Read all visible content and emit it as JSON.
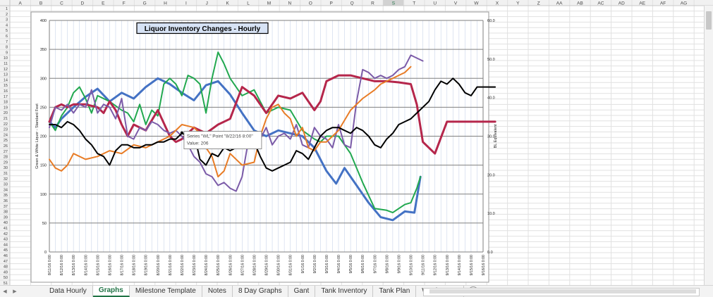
{
  "columns": [
    "A",
    "B",
    "C",
    "D",
    "E",
    "F",
    "G",
    "H",
    "I",
    "J",
    "K",
    "L",
    "M",
    "N",
    "O",
    "P",
    "Q",
    "R",
    "S",
    "T",
    "U",
    "V",
    "W",
    "X",
    "Y",
    "Z",
    "AA",
    "AB",
    "AC",
    "AD",
    "AE",
    "AF",
    "AG"
  ],
  "selected_column": "S",
  "rows": [
    "1",
    "2",
    "3",
    "4",
    "5",
    "6",
    "7",
    "8",
    "9",
    "10",
    "11",
    "12",
    "13",
    "14",
    "15",
    "16",
    "17",
    "18",
    "19",
    "20",
    "21",
    "22",
    "23",
    "24",
    "25",
    "26",
    "27",
    "28",
    "29",
    "30",
    "31",
    "32",
    "33",
    "34",
    "35",
    "36",
    "37",
    "38",
    "39",
    "40",
    "41",
    "42",
    "43",
    "44",
    "45",
    "46",
    "47",
    "48",
    "49",
    "50",
    "51"
  ],
  "sheet_tabs": [
    "Data Hourly",
    "Graphs",
    "Milestone Template",
    "Notes",
    "8 Day Graphs",
    "Gant",
    "Tank Inventory",
    "Tank Plan",
    "Washer F..."
  ],
  "active_tab": "Graphs",
  "add_sheet_label": "+",
  "tooltip": {
    "line1": "Series \"WL\" Point \"8/22/16 8:00\"",
    "line2": "Value: 206"
  },
  "chart_data": {
    "type": "line",
    "title": "Liquor Inventory Changes - Hourly",
    "ylabel": "Green & White Liquor - Standard Feet",
    "y2label": "BL Equivalent",
    "ylim": [
      0,
      400
    ],
    "y2lim": [
      0,
      60
    ],
    "yticks": [
      "0",
      "50",
      "100",
      "150",
      "200",
      "250",
      "300",
      "350",
      "400"
    ],
    "y2ticks": [
      "0.0",
      "10.0",
      "20.0",
      "30.0",
      "40.0",
      "50.0",
      "60.0"
    ],
    "grid": true,
    "legend": "none",
    "categories": [
      "8/11/16 0:00",
      "8/12/16 0:00",
      "8/13/16 0:00",
      "8/14/16 0:00",
      "8/15/16 0:00",
      "8/16/16 0:00",
      "8/17/16 0:00",
      "8/18/16 0:00",
      "8/19/16 0:00",
      "8/20/16 0:00",
      "8/21/16 0:00",
      "8/22/16 0:00",
      "8/23/16 0:00",
      "8/24/16 0:00",
      "8/25/16 0:00",
      "8/26/16 0:00",
      "8/27/16 0:00",
      "8/28/16 0:00",
      "8/29/16 0:00",
      "8/30/16 0:00",
      "8/31/16 0:00",
      "9/1/16 0:00",
      "9/2/16 0:00",
      "9/3/16 0:00",
      "9/4/16 0:00",
      "9/5/16 0:00",
      "9/6/16 0:00",
      "9/7/16 0:00",
      "9/8/16 0:00",
      "9/9/16 0:00",
      "9/10/16 0:00",
      "9/11/16 0:00",
      "9/12/16 0:00",
      "9/13/16 0:00",
      "9/14/16 0:00",
      "9/15/16 0:00",
      "9/16/16 0:00"
    ],
    "series": [
      {
        "color": "#4472c4",
        "width": 3,
        "x": [
          0,
          0.5,
          1,
          2,
          3,
          4,
          5,
          6,
          7,
          8,
          9,
          10,
          11,
          12,
          13,
          14,
          15,
          16,
          17,
          18,
          19,
          20,
          21,
          22,
          23,
          23.8,
          24.5,
          25.5,
          26.5,
          27.5,
          28.5,
          29.5,
          30.3,
          30.8
        ],
        "y": [
          225,
          215,
          230,
          250,
          268,
          282,
          260,
          275,
          265,
          285,
          300,
          290,
          275,
          262,
          288,
          295,
          272,
          240,
          210,
          200,
          210,
          205,
          200,
          180,
          140,
          118,
          145,
          115,
          85,
          60,
          55,
          70,
          68,
          130
        ]
      },
      {
        "color": "#21a84f",
        "width": 2,
        "x": [
          0,
          0.5,
          1,
          1.5,
          2,
          2.5,
          3,
          3.5,
          4,
          5,
          6,
          6.5,
          7,
          7.5,
          8,
          8.5,
          9,
          9.5,
          10,
          10.5,
          11,
          11.5,
          12,
          12.5,
          13,
          13.5,
          14,
          14.5,
          15,
          16,
          17,
          18,
          19,
          20,
          21,
          22,
          22.5,
          23,
          24,
          25,
          26,
          27,
          28,
          28.5,
          29,
          29.5,
          30,
          30.5,
          30.8
        ],
        "y": [
          225,
          210,
          235,
          250,
          275,
          285,
          265,
          240,
          270,
          260,
          245,
          240,
          225,
          255,
          220,
          245,
          235,
          290,
          300,
          290,
          270,
          305,
          300,
          290,
          240,
          300,
          345,
          325,
          300,
          270,
          280,
          240,
          250,
          245,
          210,
          195,
          190,
          200,
          200,
          170,
          120,
          75,
          72,
          68,
          75,
          82,
          85,
          110,
          130
        ]
      },
      {
        "color": "#b5264b",
        "width": 3,
        "x": [
          0,
          0.5,
          1,
          1.5,
          2,
          3,
          4,
          4.5,
          5,
          5.5,
          6,
          6.5,
          7,
          8,
          9,
          10,
          10.5,
          11,
          12,
          13,
          14,
          15,
          16,
          17,
          18,
          19,
          20,
          21,
          22,
          22.5,
          23,
          24,
          25,
          26,
          27,
          28,
          29,
          30,
          30.5,
          31,
          32,
          33,
          34,
          35,
          36,
          37
        ],
        "y": [
          225,
          250,
          255,
          250,
          255,
          255,
          250,
          240,
          260,
          245,
          220,
          200,
          220,
          210,
          245,
          200,
          190,
          195,
          215,
          205,
          220,
          230,
          285,
          270,
          240,
          270,
          265,
          275,
          245,
          260,
          295,
          305,
          305,
          300,
          295,
          295,
          293,
          290,
          255,
          190,
          170,
          225,
          225,
          225,
          225,
          225
        ]
      },
      {
        "color": "#7b5ba8",
        "width": 2,
        "x": [
          0,
          0.5,
          1,
          1.5,
          2,
          2.5,
          3,
          3.5,
          4,
          4.5,
          5,
          5.5,
          6,
          6.5,
          7,
          7.5,
          8,
          8.5,
          9,
          9.5,
          10,
          10.5,
          11,
          11.5,
          12,
          12.5,
          13,
          13.5,
          14,
          14.5,
          15,
          15.5,
          16,
          16.5,
          17,
          17.5,
          18,
          18.5,
          19,
          19.5,
          20,
          20.5,
          21,
          21.5,
          22,
          22.5,
          23,
          23.5,
          24,
          24.5,
          25,
          25.5,
          26,
          26.5,
          27,
          27.5,
          28,
          28.5,
          29,
          29.5,
          30,
          30.5,
          31
        ],
        "y": [
          215,
          250,
          245,
          255,
          240,
          255,
          250,
          280,
          240,
          255,
          250,
          230,
          265,
          200,
          195,
          215,
          210,
          225,
          220,
          210,
          205,
          210,
          200,
          185,
          165,
          155,
          135,
          130,
          115,
          120,
          110,
          105,
          130,
          190,
          200,
          195,
          215,
          185,
          200,
          205,
          195,
          220,
          185,
          180,
          215,
          200,
          195,
          180,
          220,
          185,
          180,
          260,
          315,
          310,
          300,
          305,
          300,
          305,
          315,
          320,
          340,
          335,
          330
        ]
      },
      {
        "color": "#e87c26",
        "width": 2,
        "x": [
          0,
          0.5,
          1,
          1.5,
          2,
          3,
          4,
          5,
          6,
          7,
          8,
          9,
          10,
          11,
          12,
          12.5,
          13,
          13.5,
          14,
          14.5,
          15,
          16,
          17,
          17.5,
          18,
          18.5,
          19,
          19.5,
          20,
          20.5,
          21,
          21.5,
          22,
          22.5,
          23,
          23.5,
          24,
          25,
          26,
          27,
          27.5,
          28,
          28.5,
          29,
          29.5,
          30
        ],
        "y": [
          160,
          145,
          140,
          150,
          170,
          160,
          165,
          175,
          170,
          185,
          180,
          190,
          200,
          220,
          215,
          205,
          180,
          165,
          130,
          140,
          170,
          150,
          155,
          200,
          230,
          250,
          255,
          240,
          230,
          200,
          215,
          180,
          175,
          190,
          190,
          200,
          210,
          245,
          265,
          280,
          290,
          295,
          300,
          305,
          310,
          320
        ]
      },
      {
        "color": "#000000",
        "width": 2,
        "x": [
          0,
          0.5,
          1,
          1.5,
          2,
          2.5,
          3,
          3.5,
          4,
          4.5,
          5,
          5.5,
          6,
          6.5,
          7,
          7.5,
          8,
          8.5,
          9,
          9.5,
          10,
          10.5,
          11,
          11.5,
          12,
          12.5,
          13,
          13.5,
          14,
          14.5,
          15,
          15.5,
          16,
          16.5,
          17,
          17.5,
          18,
          18.5,
          19,
          19.5,
          20,
          20.5,
          21,
          21.5,
          22,
          22.5,
          23,
          23.5,
          24,
          24.5,
          25,
          25.5,
          26,
          26.5,
          27,
          27.5,
          28,
          28.5,
          29,
          29.5,
          30,
          30.5,
          31,
          31.5,
          32,
          32.5,
          33,
          33.5,
          34,
          34.5,
          35,
          35.5,
          36,
          36.5,
          37
        ],
        "y": [
          220,
          220,
          215,
          225,
          220,
          210,
          195,
          185,
          170,
          165,
          150,
          175,
          185,
          185,
          180,
          180,
          185,
          185,
          190,
          190,
          195,
          195,
          205,
          200,
          205,
          160,
          150,
          170,
          165,
          180,
          175,
          180,
          190,
          200,
          190,
          165,
          145,
          140,
          145,
          150,
          155,
          175,
          170,
          160,
          180,
          200,
          210,
          215,
          215,
          210,
          205,
          215,
          210,
          200,
          185,
          180,
          195,
          205,
          220,
          225,
          230,
          240,
          250,
          260,
          280,
          295,
          290,
          300,
          290,
          275,
          270,
          285,
          285,
          285,
          285
        ]
      }
    ],
    "tooltip_point": {
      "series_index": 5,
      "x": 11,
      "y": 206
    }
  }
}
